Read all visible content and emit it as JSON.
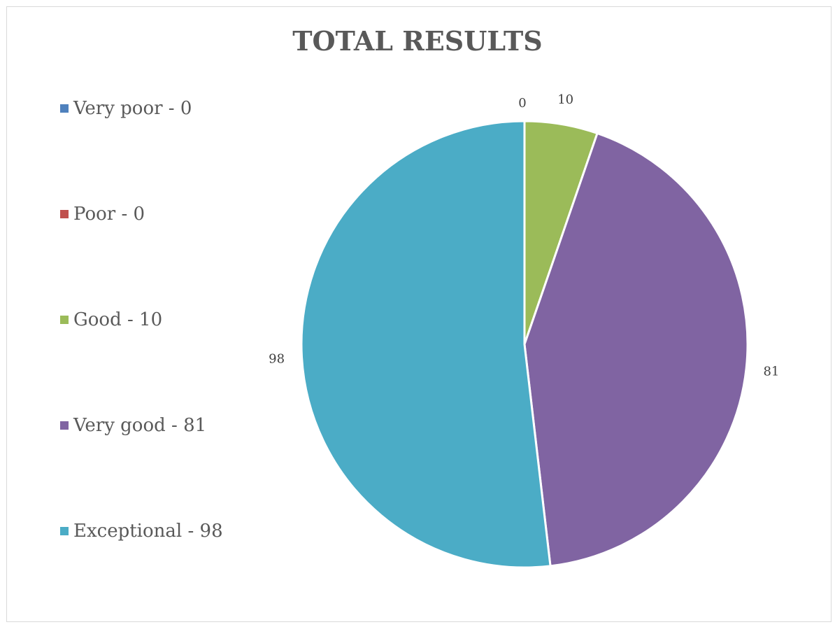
{
  "chart_data": {
    "type": "pie",
    "title": "TOTAL RESULTS",
    "categories": [
      "Very poor",
      "Poor",
      "Good",
      "Very good",
      "Exceptional"
    ],
    "values": [
      0,
      0,
      10,
      81,
      98
    ],
    "legend_labels": [
      "Very poor - 0",
      "Poor - 0",
      "Good - 10",
      "Very good - 81",
      "Exceptional - 98"
    ],
    "data_labels": [
      "0",
      "",
      "10",
      "81",
      "98"
    ],
    "colors": [
      "#4f81bd",
      "#c0504d",
      "#9bbb59",
      "#8064a2",
      "#4bacc6"
    ],
    "legend_position": "left",
    "start_angle": "12 o'clock",
    "direction": "clockwise"
  }
}
